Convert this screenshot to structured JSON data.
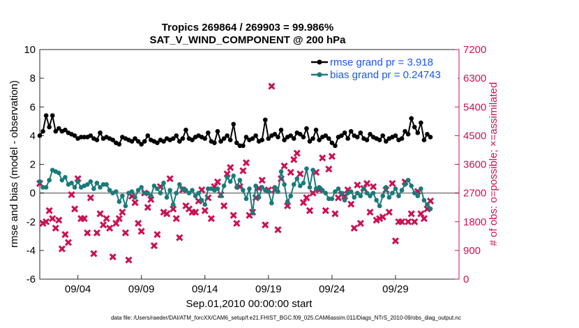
{
  "footer": "data file: /Users/raeder/DAI/ATM_forcXX/CAM6_setup/f.e21.FHIST_BGC.f09_025.CAM6assim.011/Diags_NTrS_2010-09/obs_diag_output.nc",
  "colors": {
    "rmse": "#000000",
    "bias": "#1a7a7a",
    "nobs": "#cc1155",
    "axis_right": "#cc1155",
    "legend_text": "#1a55ee",
    "zero_line": "#999999"
  },
  "chart_data": {
    "type": "line",
    "title": "Tropics 269864 / 269903 = 99.986%",
    "subtitle": "SAT_V_WIND_COMPONENT @ 200 hPa",
    "xlabel": "Sep.01,2010 00:00:00 start",
    "ylabel": "rmse and bias (model - observation)",
    "y2label": "# of obs: o=possible; ×=assimilated",
    "xlim": [
      1,
      34
    ],
    "ylim": [
      -6,
      10
    ],
    "y2lim": [
      0,
      7200
    ],
    "x_ticks": [
      4,
      9,
      14,
      19,
      24,
      29
    ],
    "x_tick_labels": [
      "09/04",
      "09/09",
      "09/14",
      "09/19",
      "09/24",
      "09/29"
    ],
    "y_ticks": [
      -6,
      -4,
      -2,
      0,
      2,
      4,
      6,
      8,
      10
    ],
    "y2_ticks": [
      0,
      900,
      1800,
      2700,
      3600,
      4500,
      5400,
      6300,
      7200
    ],
    "legend": [
      "rmse grand pr = 3.918",
      "bias grand pr = 0.24743"
    ],
    "legend_position": "top-right",
    "series": [
      {
        "name": "rmse",
        "axis": "left",
        "x": [
          1.0,
          1.25,
          1.5,
          1.75,
          2.0,
          2.25,
          2.5,
          2.75,
          3.0,
          3.25,
          3.5,
          3.75,
          4.0,
          4.25,
          4.5,
          4.75,
          5.0,
          5.25,
          5.5,
          5.75,
          6.0,
          6.25,
          6.5,
          6.75,
          7.0,
          7.25,
          7.5,
          7.75,
          8.0,
          8.25,
          8.5,
          8.75,
          9.0,
          9.25,
          9.5,
          9.75,
          10.0,
          10.25,
          10.5,
          10.75,
          11.0,
          11.25,
          11.5,
          11.75,
          12.0,
          12.25,
          12.5,
          12.75,
          13.0,
          13.25,
          13.5,
          13.75,
          14.0,
          14.25,
          14.5,
          14.75,
          15.0,
          15.25,
          15.5,
          15.75,
          16.0,
          16.25,
          16.5,
          16.75,
          17.0,
          17.25,
          17.5,
          17.75,
          18.0,
          18.25,
          18.5,
          18.75,
          19.0,
          19.25,
          19.5,
          19.75,
          20.0,
          20.25,
          20.5,
          20.75,
          21.0,
          21.25,
          21.5,
          21.75,
          22.0,
          22.25,
          22.5,
          22.75,
          23.0,
          23.25,
          23.5,
          23.75,
          24.0,
          24.25,
          24.5,
          24.75,
          25.0,
          25.25,
          25.5,
          25.75,
          26.0,
          26.25,
          26.5,
          26.75,
          27.0,
          27.25,
          27.5,
          27.75,
          28.0,
          28.25,
          28.5,
          28.75,
          29.0,
          29.25,
          29.5,
          29.75,
          30.0,
          30.25,
          30.5,
          30.75,
          31.0,
          31.25,
          31.5,
          31.75
        ],
        "values": [
          4.0,
          4.3,
          5.4,
          4.6,
          5.4,
          4.3,
          4.5,
          4.3,
          4.4,
          4.2,
          4.1,
          4.0,
          3.8,
          3.9,
          3.9,
          3.9,
          4.0,
          3.8,
          3.7,
          4.2,
          3.8,
          3.9,
          3.8,
          3.7,
          3.5,
          3.4,
          3.9,
          3.8,
          3.7,
          3.6,
          3.8,
          3.6,
          3.4,
          3.6,
          4.0,
          3.7,
          3.6,
          3.5,
          3.7,
          3.6,
          3.8,
          3.7,
          3.8,
          4.0,
          3.6,
          3.8,
          4.4,
          3.8,
          3.7,
          3.9,
          4.0,
          3.9,
          3.8,
          4.2,
          3.6,
          3.5,
          4.3,
          3.6,
          3.8,
          4.0,
          3.7,
          4.8,
          3.5,
          3.3,
          3.3,
          3.9,
          3.7,
          3.8,
          4.0,
          3.6,
          3.7,
          5.1,
          3.8,
          4.0,
          4.1,
          3.9,
          4.4,
          3.7,
          3.9,
          4.0,
          3.8,
          4.2,
          4.1,
          3.9,
          4.5,
          3.6,
          3.8,
          4.4,
          3.7,
          3.9,
          4.0,
          3.8,
          3.5,
          3.3,
          3.9,
          4.0,
          4.2,
          3.8,
          4.3,
          4.0,
          3.9,
          4.2,
          3.8,
          3.7,
          4.1,
          3.9,
          3.8,
          3.7,
          4.0,
          3.6,
          3.8,
          3.9,
          4.0,
          3.7,
          3.8,
          4.3,
          4.1,
          5.2,
          4.6,
          4.2,
          4.9,
          3.7,
          4.1,
          3.9
        ]
      },
      {
        "name": "bias",
        "axis": "left",
        "x": [
          1.0,
          1.25,
          1.5,
          1.75,
          2.0,
          2.25,
          2.5,
          2.75,
          3.0,
          3.25,
          3.5,
          3.75,
          4.0,
          4.25,
          4.5,
          4.75,
          5.0,
          5.25,
          5.5,
          5.75,
          6.0,
          6.25,
          6.5,
          6.75,
          7.0,
          7.25,
          7.5,
          7.75,
          8.0,
          8.25,
          8.5,
          8.75,
          9.0,
          9.25,
          9.5,
          9.75,
          10.0,
          10.25,
          10.5,
          10.75,
          11.0,
          11.25,
          11.5,
          11.75,
          12.0,
          12.25,
          12.5,
          12.75,
          13.0,
          13.25,
          13.5,
          13.75,
          14.0,
          14.25,
          14.5,
          14.75,
          15.0,
          15.25,
          15.5,
          15.75,
          16.0,
          16.25,
          16.5,
          16.75,
          17.0,
          17.25,
          17.5,
          17.75,
          18.0,
          18.25,
          18.5,
          18.75,
          19.0,
          19.25,
          19.5,
          19.75,
          20.0,
          20.25,
          20.5,
          20.75,
          21.0,
          21.25,
          21.5,
          21.75,
          22.0,
          22.25,
          22.5,
          22.75,
          23.0,
          23.25,
          23.5,
          23.75,
          24.0,
          24.25,
          24.5,
          24.75,
          25.0,
          25.25,
          25.5,
          25.75,
          26.0,
          26.25,
          26.5,
          26.75,
          27.0,
          27.25,
          27.5,
          27.75,
          28.0,
          28.25,
          28.5,
          28.75,
          29.0,
          29.25,
          29.5,
          29.75,
          30.0,
          30.25,
          30.5,
          30.75,
          31.0,
          31.25,
          31.5,
          31.75
        ],
        "values": [
          0.8,
          0.4,
          0.4,
          0.9,
          1.6,
          1.5,
          1.4,
          0.9,
          1.1,
          0.6,
          0.7,
          0.4,
          0.8,
          0.4,
          0.5,
          0.6,
          0.8,
          0.3,
          0.7,
          0.4,
          0.6,
          0.6,
          0.2,
          0.0,
          0.1,
          -0.6,
          -0.2,
          -0.9,
          0.0,
          0.1,
          -0.3,
          0.2,
          0.4,
          0.0,
          0.0,
          -0.2,
          0.5,
          0.3,
          0.0,
          0.7,
          -0.3,
          0.2,
          -0.8,
          0.0,
          0.6,
          0.3,
          0.2,
          0.0,
          0.2,
          -0.2,
          0.0,
          -0.5,
          -0.8,
          0.3,
          0.3,
          0.2,
          0.3,
          -0.2,
          0.5,
          1.1,
          0.8,
          1.2,
          0.4,
          0.9,
          0.2,
          -0.4,
          0.3,
          -1.4,
          0.5,
          -0.3,
          0.4,
          0.2,
          0.1,
          -0.7,
          0.4,
          0.1,
          1.5,
          0.6,
          -0.6,
          -0.2,
          0.6,
          1.0,
          0.5,
          0.7,
          1.7,
          0.4,
          1.6,
          0.3,
          0.4,
          0.2,
          0.0,
          -0.4,
          -0.4,
          0.1,
          0.3,
          0.0,
          -0.5,
          0.0,
          0.1,
          -0.3,
          0.0,
          -0.2,
          0.3,
          0.0,
          -0.2,
          0.0,
          -0.5,
          -0.9,
          -0.2,
          0.4,
          -0.3,
          0.0,
          0.3,
          -0.2,
          0.2,
          0.6,
          0.9,
          0.5,
          0.0,
          -0.2,
          0.3,
          -0.5,
          -0.8,
          -1.1
        ]
      },
      {
        "name": "# of obs",
        "axis": "right",
        "x": [
          1.0,
          1.25,
          1.5,
          1.75,
          2.0,
          2.25,
          2.5,
          2.75,
          3.0,
          3.25,
          3.5,
          3.75,
          4.0,
          4.25,
          4.5,
          4.75,
          5.0,
          5.25,
          5.5,
          5.75,
          6.0,
          6.25,
          6.5,
          6.75,
          7.0,
          7.25,
          7.5,
          7.75,
          8.0,
          8.25,
          8.5,
          8.75,
          9.0,
          9.25,
          9.5,
          9.75,
          10.0,
          10.25,
          10.5,
          10.75,
          11.0,
          11.25,
          11.5,
          11.75,
          12.0,
          12.25,
          12.5,
          12.75,
          13.0,
          13.25,
          13.5,
          13.75,
          14.0,
          14.25,
          14.5,
          14.75,
          15.0,
          15.25,
          15.5,
          15.75,
          16.0,
          16.25,
          16.5,
          16.75,
          17.0,
          17.25,
          17.5,
          17.75,
          18.0,
          18.25,
          18.5,
          18.75,
          19.0,
          19.25,
          19.5,
          19.75,
          20.0,
          20.25,
          20.5,
          20.75,
          21.0,
          21.25,
          21.5,
          21.75,
          22.0,
          22.25,
          22.5,
          22.75,
          23.0,
          23.25,
          23.5,
          23.75,
          24.0,
          24.25,
          24.5,
          24.75,
          25.0,
          25.25,
          25.5,
          25.75,
          26.0,
          26.25,
          26.5,
          26.75,
          27.0,
          27.25,
          27.5,
          27.75,
          28.0,
          28.25,
          28.5,
          28.75,
          29.0,
          29.25,
          29.5,
          29.75,
          30.0,
          30.25,
          30.5,
          30.75,
          31.0,
          31.25,
          31.5,
          31.75
        ],
        "values": [
          3000,
          1750,
          1800,
          2150,
          1900,
          1600,
          1850,
          950,
          1400,
          1150,
          2650,
          2200,
          3150,
          1900,
          1900,
          1450,
          2550,
          800,
          1450,
          2050,
          1700,
          1900,
          1600,
          700,
          1750,
          1900,
          2100,
          1450,
          600,
          2600,
          2400,
          1750,
          1500,
          2700,
          2250,
          2500,
          1050,
          1400,
          2900,
          2100,
          2050,
          3150,
          2200,
          1900,
          1300,
          2800,
          2300,
          2200,
          2100,
          2100,
          2450,
          2800,
          2150,
          2550,
          1900,
          2900,
          3050,
          2650,
          2300,
          3300,
          3500,
          2000,
          1750,
          2900,
          3400,
          3650,
          2000,
          2100,
          2550,
          2850,
          3100,
          1700,
          2800,
          6050,
          2800,
          1550,
          3150,
          3550,
          2300,
          3350,
          3750,
          3950,
          3300,
          2400,
          2550,
          2150,
          2700,
          3350,
          2800,
          3800,
          2150,
          3450,
          3850,
          2050,
          2550,
          2650,
          2600,
          2800,
          2350,
          1600,
          2950,
          1750,
          2850,
          3000,
          2100,
          2900,
          1850,
          1900,
          1950,
          2800,
          2100,
          3000,
          1200,
          1800,
          1800,
          3050,
          1800,
          2050,
          1800,
          2750,
          2050,
          1900,
          2200,
          2450
        ]
      }
    ]
  }
}
